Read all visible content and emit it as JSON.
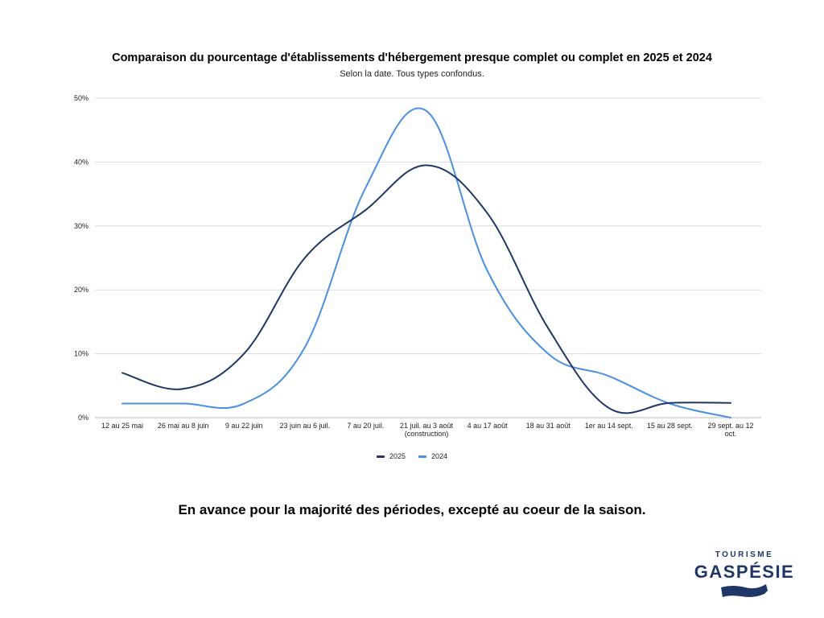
{
  "chart_data": {
    "type": "line",
    "title": "Comparaison du pourcentage d'établissements d'hébergement presque complet ou complet en 2025 et 2024",
    "subtitle": "Selon la date. Tous types confondus.",
    "categories": [
      "12 au 25 mai",
      "26 mai au 8 juin",
      "9 au 22 juin",
      "23 juin au 6 juil.",
      "7  au 20 juil.",
      "21 juil. au 3 août (construction)",
      "4 au 17 août",
      "18 au 31 août",
      "1er au 14 sept.",
      "15 au 28 sept.",
      "29 sept. au 12 oct."
    ],
    "series": [
      {
        "name": "2025",
        "color": "#1f3766",
        "values": [
          7,
          4.5,
          10,
          25,
          32.5,
          39.5,
          32,
          14,
          1.5,
          2.3,
          2.3
        ]
      },
      {
        "name": "2024",
        "color": "#4a90e2",
        "values": [
          2.2,
          2.2,
          2.2,
          11,
          36,
          48,
          23,
          10,
          6.5,
          2.2,
          0
        ]
      }
    ],
    "ylim": [
      0,
      50
    ],
    "yticks": [
      "0%",
      "10%",
      "20%",
      "30%",
      "40%",
      "50%"
    ],
    "grid": true,
    "legend_position": "bottom"
  },
  "caption": "En avance pour la majorité des périodes, excepté au coeur de la saison.",
  "logo": {
    "top": "TOURISME",
    "main": "GASPÉSIE"
  }
}
